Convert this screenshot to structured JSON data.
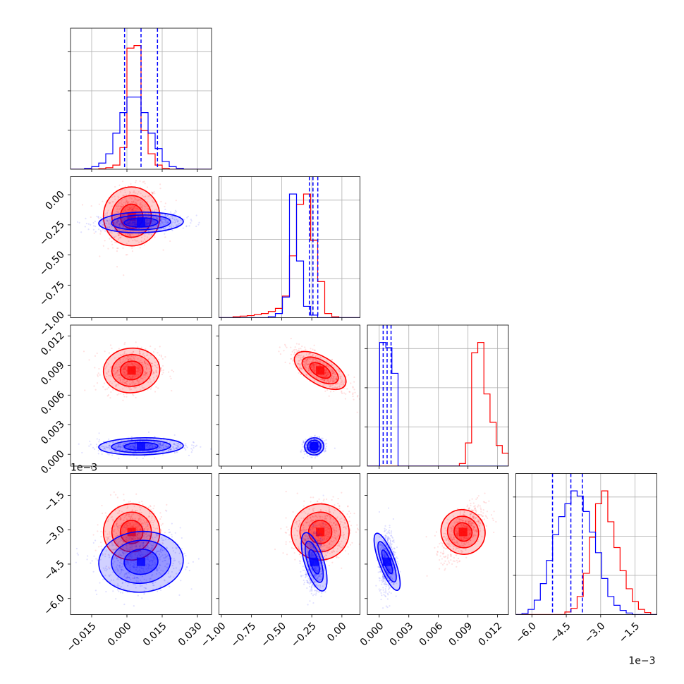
{
  "chart_data": {
    "type": "corner",
    "description_note": "",
    "series": [
      {
        "name": "",
        "color": "#ff0000"
      },
      {
        "name": "",
        "color": "#0000ff"
      }
    ],
    "params": [
      {
        "ticks": [
          "−0.015",
          "0.000",
          "0.015",
          "0.030"
        ],
        "tick_values": [
          -0.015,
          0.0,
          0.015,
          0.03
        ],
        "range": [
          -0.024,
          0.036
        ],
        "offset": ""
      },
      {
        "ticks": [
          "−1.00",
          "−0.75",
          "−0.50",
          "−0.25",
          "0.00"
        ],
        "tick_values": [
          -1.0,
          -0.75,
          -0.5,
          -0.25,
          0.0
        ],
        "range": [
          -1.02,
          0.15
        ],
        "offset": ""
      },
      {
        "ticks": [
          "0.000",
          "0.003",
          "0.006",
          "0.009",
          "0.012"
        ],
        "tick_values": [
          0.0,
          0.003,
          0.006,
          0.009,
          0.012
        ],
        "range": [
          -0.0012,
          0.0131
        ],
        "offset": ""
      },
      {
        "ticks": [
          "−6.0",
          "−4.5",
          "−3.0",
          "−1.5"
        ],
        "tick_values": [
          -6.0,
          -4.5,
          -3.0,
          -1.5
        ],
        "range": [
          -6.7,
          -0.55
        ],
        "offset": "1e−3"
      }
    ],
    "series_stats": [
      {
        "means": [
          0.002,
          -0.18,
          0.0085,
          -3.1
        ],
        "sds": [
          0.006,
          0.12,
          0.0011,
          0.6
        ],
        "quantiles": null
      },
      {
        "means": [
          0.006,
          -0.23,
          0.0008,
          -4.4
        ],
        "sds": [
          0.009,
          0.04,
          0.0004,
          0.65
        ],
        "quantiles": [
          [
            -0.001,
            0.006,
            0.013
          ],
          [
            -0.27,
            -0.24,
            -0.2
          ],
          [
            0.0004,
            0.0008,
            0.0012
          ],
          [
            -5.1,
            -4.3,
            -3.8
          ]
        ]
      }
    ],
    "hist_counts": {
      "red": [
        [
          0,
          0,
          0,
          0,
          1,
          3,
          8,
          42,
          235,
          240,
          75,
          30,
          8,
          2,
          0,
          0,
          0,
          0,
          0,
          0
        ],
        [
          0,
          0,
          2,
          3,
          4,
          6,
          8,
          12,
          18,
          42,
          120,
          220,
          240,
          150,
          70,
          8,
          2,
          0,
          0,
          0
        ],
        [
          0,
          0,
          0,
          0,
          0,
          0,
          0,
          0,
          0,
          0,
          0,
          0,
          0,
          0,
          0,
          5,
          45,
          220,
          240,
          140,
          85,
          40,
          25
        ],
        [
          0,
          0,
          0,
          0,
          0,
          0,
          0,
          0,
          5,
          12,
          35,
          80,
          150,
          215,
          240,
          180,
          130,
          85,
          50,
          25,
          10,
          4,
          0
        ]
      ],
      "blue": [
        [
          0,
          0,
          2,
          5,
          12,
          30,
          70,
          110,
          140,
          140,
          110,
          70,
          40,
          15,
          5,
          2,
          0,
          0,
          0,
          0
        ],
        [
          0,
          0,
          0,
          0,
          0,
          0,
          0,
          2,
          8,
          40,
          240,
          110,
          22,
          5,
          0,
          0,
          0,
          0,
          0,
          0
        ],
        [
          0,
          0,
          240,
          230,
          180,
          0,
          0,
          0,
          0,
          0,
          0,
          0,
          0,
          0,
          0,
          0,
          0,
          0,
          0,
          0,
          0,
          0,
          0
        ],
        [
          0,
          2,
          10,
          28,
          60,
          105,
          155,
          190,
          215,
          240,
          230,
          200,
          160,
          120,
          70,
          35,
          18,
          8,
          3,
          0,
          0,
          0,
          0
        ]
      ]
    },
    "grid": true
  }
}
